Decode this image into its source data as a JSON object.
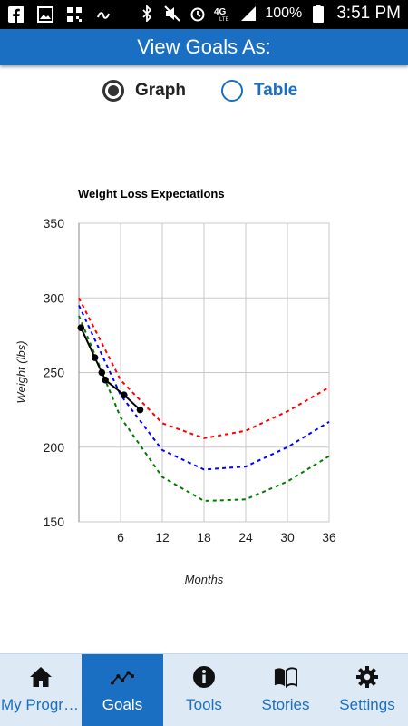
{
  "status_bar": {
    "battery": "100%",
    "time": "3:51 PM",
    "icons": [
      "facebook-icon",
      "gallery-icon",
      "qr-icon",
      "app-icon",
      "bluetooth-icon",
      "mute-icon",
      "alarm-icon",
      "lte-icon",
      "signal-icon",
      "battery-icon"
    ]
  },
  "header": {
    "title": "View Goals As:"
  },
  "view_toggle": {
    "options": [
      {
        "label": "Graph",
        "selected": true
      },
      {
        "label": "Table",
        "selected": false
      }
    ]
  },
  "chart_data": {
    "type": "line",
    "title": "Weight Loss Expectations",
    "xlabel": "Months",
    "ylabel": "Weight (lbs)",
    "xlim": [
      0,
      36
    ],
    "ylim": [
      150,
      350
    ],
    "xticks": [
      6,
      12,
      18,
      24,
      30,
      36
    ],
    "yticks": [
      150,
      200,
      250,
      300,
      350
    ],
    "grid": true,
    "series": [
      {
        "color": "#ff0000",
        "style": "dashed",
        "x": [
          0,
          6,
          12,
          18,
          24,
          30,
          36
        ],
        "y": [
          300,
          245,
          216,
          206,
          211,
          224,
          240
        ]
      },
      {
        "color": "#0000ff",
        "style": "dashed",
        "x": [
          0,
          6,
          12,
          18,
          24,
          30,
          36
        ],
        "y": [
          295,
          235,
          198,
          185,
          187,
          200,
          217
        ]
      },
      {
        "color": "#007a00",
        "style": "dashed",
        "x": [
          0,
          6,
          12,
          18,
          24,
          30,
          36
        ],
        "y": [
          288,
          220,
          180,
          164,
          165,
          177,
          194
        ]
      },
      {
        "color": "#000000",
        "style": "solid",
        "markers": true,
        "x": [
          0.3,
          2.3,
          3.3,
          3.8,
          6.5,
          8.8
        ],
        "y": [
          280,
          260,
          250,
          245,
          235,
          225
        ]
      }
    ]
  },
  "bottom_nav": {
    "items": [
      {
        "label": "My Progress",
        "icon": "home-icon",
        "active": false
      },
      {
        "label": "Goals",
        "icon": "trend-line-icon",
        "active": true
      },
      {
        "label": "Tools",
        "icon": "info-icon",
        "active": false
      },
      {
        "label": "Stories",
        "icon": "book-icon",
        "active": false
      },
      {
        "label": "Settings",
        "icon": "gear-icon",
        "active": false
      }
    ]
  }
}
